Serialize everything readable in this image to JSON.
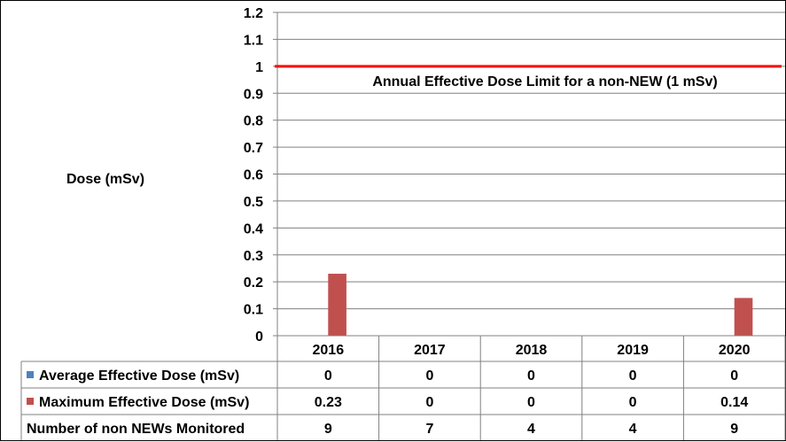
{
  "chart_data": {
    "type": "bar",
    "title": "",
    "ylabel": "Dose (mSv)",
    "xlabel": "",
    "categories": [
      "2016",
      "2017",
      "2018",
      "2019",
      "2020"
    ],
    "ylim": [
      0,
      1.2
    ],
    "yticks": [
      "0",
      "0.1",
      "0.2",
      "0.3",
      "0.4",
      "0.5",
      "0.6",
      "0.7",
      "0.8",
      "0.9",
      "1",
      "1.1",
      "1.2"
    ],
    "grid": true,
    "series": [
      {
        "name": "Average Effective Dose (mSv)",
        "color": "#4F81BD",
        "values": [
          0,
          0,
          0,
          0,
          0
        ]
      },
      {
        "name": "Maximum Effective Dose (mSv)",
        "color": "#C0504D",
        "values": [
          0.23,
          0,
          0,
          0,
          0.14
        ]
      }
    ],
    "reference_line": {
      "value": 1,
      "color": "#FF0000",
      "label": "Annual Effective Dose Limit for a non-NEW (1 mSv)"
    },
    "data_table": {
      "rows": [
        {
          "label": "Average Effective Dose (mSv)",
          "legend_color": "#4F81BD",
          "cells": [
            "0",
            "0",
            "0",
            "0",
            "0"
          ]
        },
        {
          "label": "Maximum Effective Dose (mSv)",
          "legend_color": "#C0504D",
          "cells": [
            "0.23",
            "0",
            "0",
            "0",
            "0.14"
          ]
        },
        {
          "label": "Number of non NEWs Monitored",
          "legend_color": "",
          "cells": [
            "9",
            "7",
            "4",
            "4",
            "9"
          ]
        }
      ]
    }
  }
}
